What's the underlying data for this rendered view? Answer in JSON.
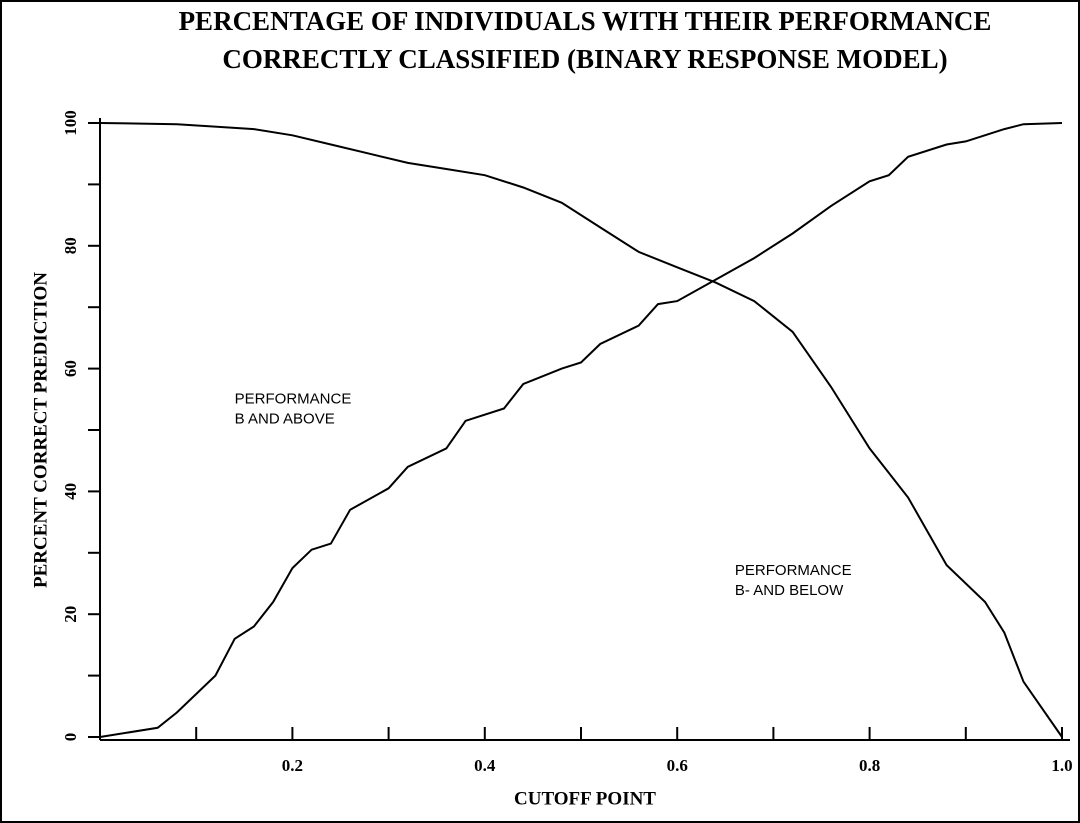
{
  "chart_data": {
    "type": "line",
    "title": [
      "PERCENTAGE OF INDIVIDUALS WITH THEIR PERFORMANCE",
      "CORRECTLY CLASSIFIED (BINARY RESPONSE MODEL)"
    ],
    "x_label": "CUTOFF POINT",
    "y_label": "PERCENT CORRECT PREDICTION",
    "xlim": [
      0,
      1.0
    ],
    "ylim": [
      0,
      100
    ],
    "xticks": [
      0.2,
      0.4,
      0.6,
      0.8,
      {
        "value": 1.0,
        "label": "1.0"
      }
    ],
    "xminorticks": [
      0.1,
      0.3,
      0.5,
      0.7,
      0.9
    ],
    "yticks": [
      0,
      20,
      40,
      60,
      80,
      100
    ],
    "yminorticks": [
      10,
      30,
      50,
      70,
      90
    ],
    "series": [
      {
        "color": "#000000",
        "x": [
          0,
          0.08,
          0.16,
          0.2,
          0.24,
          0.28,
          0.32,
          0.36,
          0.4,
          0.44,
          0.48,
          0.52,
          0.56,
          0.6,
          0.64,
          0.68,
          0.72,
          0.76,
          0.8,
          0.84,
          0.88,
          0.92,
          0.94,
          0.96,
          1.0
        ],
        "values": [
          100,
          99.8,
          99,
          98,
          96.5,
          95,
          93.5,
          92.5,
          91.5,
          89.5,
          87,
          83,
          79,
          76.5,
          74,
          71,
          66,
          57,
          47,
          39,
          28,
          22,
          17,
          9,
          0
        ]
      },
      {
        "color": "#000000",
        "x": [
          0,
          0.06,
          0.08,
          0.12,
          0.14,
          0.16,
          0.18,
          0.2,
          0.22,
          0.24,
          0.26,
          0.3,
          0.32,
          0.36,
          0.38,
          0.42,
          0.44,
          0.48,
          0.5,
          0.52,
          0.56,
          0.58,
          0.6,
          0.64,
          0.68,
          0.72,
          0.76,
          0.8,
          0.82,
          0.84,
          0.88,
          0.9,
          0.94,
          0.96,
          1.0
        ],
        "values": [
          0,
          1.5,
          4,
          10,
          16,
          18,
          22,
          27.5,
          30.5,
          31.5,
          37,
          40.5,
          44,
          47,
          51.5,
          53.5,
          57.5,
          60,
          61,
          64,
          67,
          70.5,
          71,
          74.5,
          78,
          82,
          86.5,
          90.5,
          91.5,
          94.5,
          96.5,
          97,
          99,
          99.8,
          100
        ]
      }
    ],
    "annotations": [
      {
        "text": [
          "PERFORMANCE",
          "B AND ABOVE"
        ],
        "x": 0.14,
        "y": 55
      },
      {
        "text": [
          "PERFORMANCE",
          "B- AND BELOW"
        ],
        "x": 0.66,
        "y": 27
      }
    ]
  }
}
